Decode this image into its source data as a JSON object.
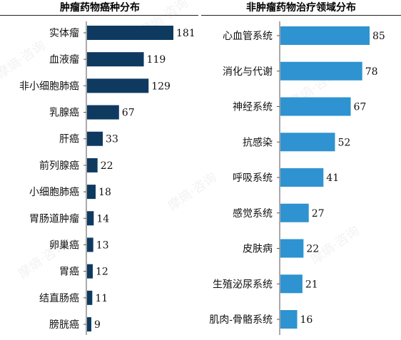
{
  "chart_data": [
    {
      "type": "bar",
      "orientation": "horizontal",
      "title": "肿瘤药物癌种分布",
      "categories": [
        "实体瘤",
        "血液瘤",
        "非小细胞肺癌",
        "乳腺癌",
        "肝癌",
        "前列腺癌",
        "小细胞肺癌",
        "胃肠道肿瘤",
        "卵巢癌",
        "胃癌",
        "结直肠癌",
        "膀胱癌"
      ],
      "values": [
        181,
        119,
        129,
        67,
        33,
        22,
        18,
        14,
        13,
        12,
        11,
        9
      ],
      "color": "#0f3a60",
      "grid": false,
      "legend": "none"
    },
    {
      "type": "bar",
      "orientation": "horizontal",
      "title": "非肿瘤药物治疗领域分布",
      "categories": [
        "心血管系统",
        "消化与代谢",
        "神经系统",
        "抗感染",
        "呼吸系统",
        "感觉系统",
        "皮肤病",
        "生殖泌尿系统",
        "肌肉-骨骼系统"
      ],
      "values": [
        85,
        78,
        67,
        52,
        41,
        27,
        22,
        21,
        16
      ],
      "color": "#2e93d0",
      "grid": false,
      "legend": "none"
    }
  ],
  "watermark": "摩熵·咨询"
}
